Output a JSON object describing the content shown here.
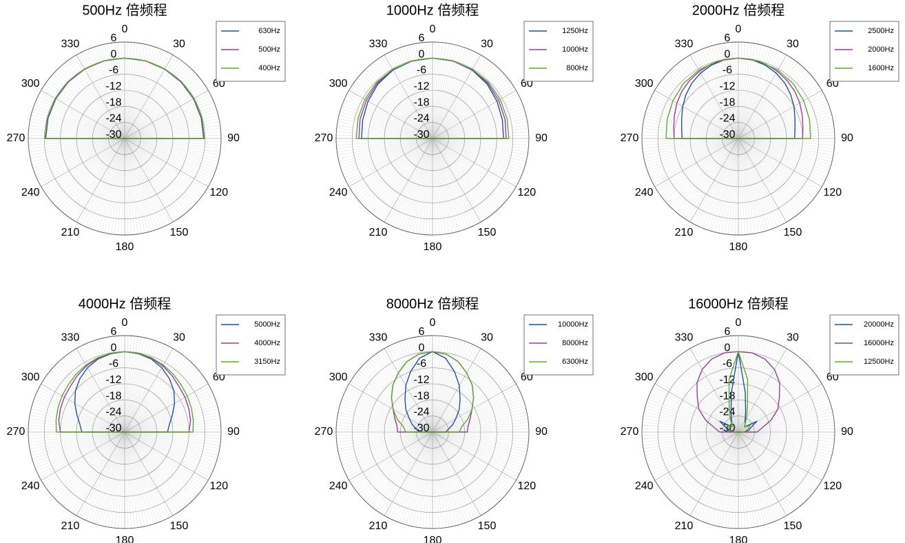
{
  "chart_data": [
    {
      "type": "polar",
      "title": "500Hz 倍频程",
      "r_ticks": [
        "6",
        "0",
        "-6",
        "-12",
        "-18",
        "-24",
        "-30"
      ],
      "rlim": [
        -30,
        6
      ],
      "theta_ticks": [
        "0",
        "30",
        "60",
        "90",
        "120",
        "150",
        "180",
        "210",
        "240",
        "270",
        "300",
        "330"
      ],
      "theta_zero": "top",
      "theta_direction": "clockwise",
      "grid": true,
      "legend_position": "top-right",
      "series": [
        {
          "name": "630Hz",
          "color": "#1f4fa0",
          "theta": [
            -90,
            -75,
            -60,
            -45,
            -30,
            -15,
            0,
            15,
            30,
            45,
            60,
            75,
            90
          ],
          "r": [
            -0.5,
            -0.4,
            -0.3,
            -0.2,
            -0.1,
            0,
            0,
            0,
            -0.1,
            -0.2,
            -0.3,
            -0.4,
            -0.5
          ]
        },
        {
          "name": "500Hz",
          "color": "#9b3a9e",
          "theta": [
            -90,
            -75,
            -60,
            -45,
            -30,
            -15,
            0,
            15,
            30,
            45,
            60,
            75,
            90
          ],
          "r": [
            -0.3,
            -0.2,
            -0.2,
            -0.1,
            -0.1,
            0,
            0,
            0,
            -0.1,
            -0.1,
            -0.2,
            -0.2,
            -0.3
          ]
        },
        {
          "name": "400Hz",
          "color": "#5fa82f",
          "theta": [
            -90,
            -75,
            -60,
            -45,
            -30,
            -15,
            0,
            15,
            30,
            45,
            60,
            75,
            90
          ],
          "r": [
            -0.2,
            -0.1,
            -0.1,
            0,
            0,
            0,
            0,
            0,
            0,
            0,
            -0.1,
            -0.1,
            -0.2
          ]
        }
      ]
    },
    {
      "type": "polar",
      "title": "1000Hz 倍频程",
      "r_ticks": [
        "6",
        "0",
        "-6",
        "-12",
        "-18",
        "-24",
        "-30"
      ],
      "rlim": [
        -30,
        6
      ],
      "theta_ticks": [
        "0",
        "30",
        "60",
        "90",
        "120",
        "150",
        "180",
        "210",
        "240",
        "270",
        "300",
        "330"
      ],
      "theta_zero": "top",
      "theta_direction": "clockwise",
      "grid": true,
      "legend_position": "top-right",
      "series": [
        {
          "name": "1250Hz",
          "color": "#1f4fa0",
          "theta": [
            -90,
            -75,
            -60,
            -45,
            -30,
            -15,
            0,
            15,
            30,
            45,
            60,
            75,
            90
          ],
          "r": [
            -3.5,
            -3,
            -2.2,
            -1.2,
            -0.5,
            -0.1,
            0,
            -0.1,
            -0.5,
            -1.2,
            -2.2,
            -3,
            -3.5
          ]
        },
        {
          "name": "1000Hz",
          "color": "#9b3a9e",
          "theta": [
            -90,
            -75,
            -60,
            -45,
            -30,
            -15,
            0,
            15,
            30,
            45,
            60,
            75,
            90
          ],
          "r": [
            -2.5,
            -2,
            -1.5,
            -0.8,
            -0.3,
            -0.1,
            0,
            -0.1,
            -0.3,
            -0.8,
            -1.5,
            -2,
            -2.5
          ]
        },
        {
          "name": "800Hz",
          "color": "#5fa82f",
          "theta": [
            -90,
            -75,
            -60,
            -45,
            -30,
            -15,
            0,
            15,
            30,
            45,
            60,
            75,
            90
          ],
          "r": [
            -1.5,
            -1.2,
            -0.8,
            -0.4,
            -0.2,
            0,
            0,
            0,
            -0.2,
            -0.4,
            -0.8,
            -1.2,
            -1.5
          ]
        }
      ]
    },
    {
      "type": "polar",
      "title": "2000Hz 倍频程",
      "r_ticks": [
        "6",
        "0",
        "-6",
        "-12",
        "-18",
        "-24",
        "-30"
      ],
      "rlim": [
        -30,
        6
      ],
      "theta_ticks": [
        "0",
        "30",
        "60",
        "90",
        "120",
        "150",
        "180",
        "210",
        "240",
        "270",
        "300",
        "330"
      ],
      "theta_zero": "top",
      "theta_direction": "clockwise",
      "grid": true,
      "legend_position": "top-right",
      "series": [
        {
          "name": "2500Hz",
          "color": "#1f4fa0",
          "theta": [
            -90,
            -80,
            -70,
            -60,
            -50,
            -40,
            -30,
            -20,
            -10,
            0,
            10,
            20,
            30,
            40,
            50,
            60,
            70,
            80,
            90
          ],
          "r": [
            -9,
            -8.5,
            -7.5,
            -6,
            -4.5,
            -3,
            -1.8,
            -0.8,
            -0.2,
            0,
            -0.2,
            -0.8,
            -1.8,
            -3,
            -4.5,
            -6,
            -7.5,
            -8.5,
            -9
          ]
        },
        {
          "name": "2000Hz",
          "color": "#9b3a9e",
          "theta": [
            -90,
            -80,
            -70,
            -60,
            -50,
            -40,
            -30,
            -20,
            -10,
            0,
            10,
            20,
            30,
            40,
            50,
            60,
            70,
            80,
            90
          ],
          "r": [
            -6,
            -5.5,
            -4.6,
            -3.5,
            -2.5,
            -1.7,
            -1,
            -0.4,
            -0.1,
            0,
            -0.1,
            -0.4,
            -1,
            -1.7,
            -2.5,
            -3.5,
            -4.6,
            -5.5,
            -6
          ]
        },
        {
          "name": "1600Hz",
          "color": "#5fa82f",
          "theta": [
            -90,
            -75,
            -60,
            -45,
            -30,
            -15,
            0,
            15,
            30,
            45,
            60,
            75,
            90
          ],
          "r": [
            -3,
            -2.5,
            -1.8,
            -1,
            -0.5,
            -0.1,
            0,
            -0.1,
            -0.5,
            -1,
            -1.8,
            -2.5,
            -3
          ]
        }
      ]
    },
    {
      "type": "polar",
      "title": "4000Hz 倍频程",
      "r_ticks": [
        "6",
        "0",
        "-6",
        "-12",
        "-18",
        "-24",
        "-30"
      ],
      "rlim": [
        -30,
        6
      ],
      "theta_ticks": [
        "0",
        "30",
        "60",
        "90",
        "120",
        "150",
        "180",
        "210",
        "240",
        "270",
        "300",
        "330"
      ],
      "theta_zero": "top",
      "theta_direction": "clockwise",
      "grid": true,
      "legend_position": "top-right",
      "series": [
        {
          "name": "5000Hz",
          "color": "#1f4fa0",
          "theta": [
            -90,
            -80,
            -70,
            -60,
            -50,
            -40,
            -30,
            -20,
            -10,
            0,
            10,
            20,
            30,
            40,
            50,
            60,
            70,
            80,
            90
          ],
          "r": [
            -14,
            -13,
            -11,
            -8.5,
            -6,
            -4,
            -2.3,
            -1,
            -0.3,
            0,
            -0.3,
            -1,
            -2.3,
            -4,
            -6,
            -8.5,
            -11,
            -13,
            -14
          ]
        },
        {
          "name": "4000Hz",
          "color": "#9b3a9e",
          "theta": [
            -90,
            -80,
            -70,
            -60,
            -50,
            -40,
            -30,
            -20,
            -10,
            0,
            10,
            20,
            30,
            40,
            50,
            60,
            70,
            80,
            90
          ],
          "r": [
            -6,
            -5,
            -4.5,
            -4,
            -3.5,
            -2.5,
            -1.5,
            -0.7,
            -0.2,
            0,
            -0.2,
            -0.7,
            -1.5,
            -2.5,
            -3.5,
            -4,
            -4.5,
            -5,
            -6
          ]
        },
        {
          "name": "3150Hz",
          "color": "#5fa82f",
          "theta": [
            -90,
            -80,
            -70,
            -60,
            -50,
            -40,
            -30,
            -20,
            -10,
            0,
            10,
            20,
            30,
            40,
            50,
            60,
            70,
            80,
            90
          ],
          "r": [
            -4.5,
            -4,
            -3.5,
            -3,
            -2.5,
            -1.8,
            -1.1,
            -0.5,
            -0.1,
            0,
            -0.1,
            -0.5,
            -1.1,
            -1.8,
            -2.5,
            -3,
            -3.5,
            -4,
            -4.5
          ]
        }
      ]
    },
    {
      "type": "polar",
      "title": "8000Hz 倍频程",
      "r_ticks": [
        "6",
        "0",
        "-6",
        "-12",
        "-18",
        "-24",
        "-30"
      ],
      "rlim": [
        -30,
        6
      ],
      "theta_ticks": [
        "0",
        "30",
        "60",
        "90",
        "120",
        "150",
        "180",
        "210",
        "240",
        "270",
        "300",
        "330"
      ],
      "theta_zero": "top",
      "theta_direction": "clockwise",
      "grid": true,
      "legend_position": "top-right",
      "series": [
        {
          "name": "10000Hz",
          "color": "#1f4fa0",
          "theta": [
            -90,
            -80,
            -70,
            -60,
            -50,
            -40,
            -30,
            -20,
            -10,
            0,
            10,
            20,
            30,
            40,
            50,
            60,
            70,
            80,
            90
          ],
          "r": [
            -25,
            -24,
            -22,
            -20,
            -17,
            -14,
            -10,
            -6,
            -2,
            0,
            -2,
            -6,
            -10,
            -14,
            -17,
            -20,
            -22,
            -24,
            -25
          ]
        },
        {
          "name": "8000Hz",
          "color": "#9b3a9e",
          "theta": [
            -90,
            -80,
            -70,
            -60,
            -50,
            -40,
            -30,
            -20,
            -10,
            0,
            10,
            20,
            30,
            40,
            50,
            60,
            70,
            80,
            90
          ],
          "r": [
            -17,
            -16.5,
            -15,
            -13,
            -10,
            -7,
            -4.5,
            -2,
            -0.5,
            0,
            -0.5,
            -2,
            -4.5,
            -7,
            -10,
            -13,
            -15,
            -16.5,
            -17
          ]
        },
        {
          "name": "6300Hz",
          "color": "#5fa82f",
          "theta": [
            -90,
            -80,
            -70,
            -60,
            -50,
            -40,
            -30,
            -20,
            -10,
            0,
            10,
            20,
            30,
            40,
            50,
            60,
            70,
            80,
            90
          ],
          "r": [
            -20,
            -19,
            -16,
            -13,
            -10,
            -7,
            -4.5,
            -2,
            -0.5,
            0,
            -0.5,
            -2,
            -4.5,
            -7,
            -10,
            -13,
            -16,
            -19,
            -20
          ]
        }
      ]
    },
    {
      "type": "polar",
      "title": "16000Hz 倍频程",
      "r_ticks": [
        "6",
        "0",
        "-6",
        "-12",
        "-18",
        "-24",
        "-30"
      ],
      "rlim": [
        -30,
        6
      ],
      "theta_ticks": [
        "0",
        "30",
        "60",
        "90",
        "120",
        "150",
        "180",
        "210",
        "240",
        "270",
        "300",
        "330"
      ],
      "theta_zero": "top",
      "theta_direction": "clockwise",
      "grid": true,
      "legend_position": "top-right",
      "series": [
        {
          "name": "20000Hz",
          "color": "#1f4fa0",
          "theta": [
            -90,
            -80,
            -70,
            -60,
            -50,
            -40,
            -30,
            -20,
            -10,
            0,
            10,
            20,
            30,
            40,
            50,
            60,
            70,
            80,
            90
          ],
          "r": [
            -28,
            -26,
            -25,
            -22,
            -27,
            -26,
            -25,
            -22,
            -15,
            0,
            -15,
            -22,
            -25,
            -26,
            -27,
            -22,
            -25,
            -26,
            -28
          ]
        },
        {
          "name": "16000Hz",
          "color": "#9b3a9e",
          "theta": [
            -90,
            -80,
            -70,
            -60,
            -50,
            -40,
            -30,
            -20,
            -10,
            0,
            10,
            20,
            30,
            40,
            50,
            60,
            70,
            80,
            90
          ],
          "r": [
            -23,
            -21,
            -17,
            -13,
            -10,
            -6,
            -3,
            -1,
            0,
            0,
            0,
            -1,
            -3,
            -6,
            -10,
            -13,
            -17,
            -21,
            -23
          ]
        },
        {
          "name": "12500Hz",
          "color": "#5fa82f",
          "theta": [
            -90,
            -80,
            -70,
            -60,
            -50,
            -40,
            -30,
            -20,
            -10,
            0,
            10,
            20,
            30,
            40,
            50,
            60,
            70,
            80,
            90
          ],
          "r": [
            -28,
            -27,
            -26,
            -25,
            -27,
            -26,
            -24,
            -20,
            -10,
            0,
            -10,
            -20,
            -24,
            -26,
            -27,
            -25,
            -26,
            -27,
            -28
          ]
        }
      ]
    }
  ]
}
